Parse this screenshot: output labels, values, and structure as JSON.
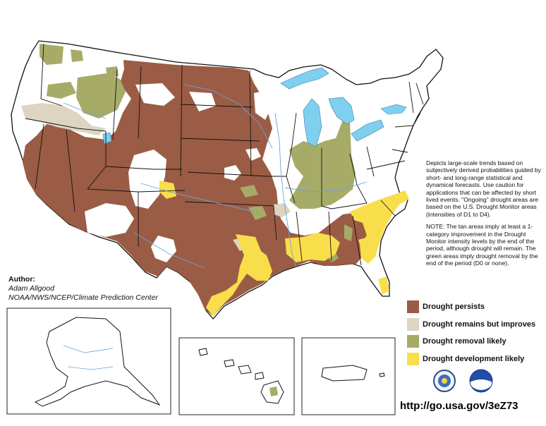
{
  "description_text": {
    "paragraph1": "Depicts large-scale trends based on subjectively derived probabilities guided by short- and long-range statistical and dynamical forecasts. Use caution for applications that can be affected by short lived events. \"Ongoing\" drought areas are based on the U.S. Drought Monitor areas (intensities of D1 to D4).",
    "paragraph2": "NOTE: The tan areas imply at least a 1-category improvement in the Drought Monitor intensity levels by the end of the period, although drought will remain. The green areas imply drought removal by the end of the period (D0 or none)."
  },
  "author": {
    "heading": "Author:",
    "name": "Adam Allgood",
    "organization": "NOAA/NWS/NCEP/Climate Prediction Center"
  },
  "legend": [
    {
      "label": "Drought persists",
      "color": "#9b5c45"
    },
    {
      "label": "Drought remains but improves",
      "color": "#ddd5c2"
    },
    {
      "label": "Drought removal likely",
      "color": "#a7ab68"
    },
    {
      "label": "Drought development likely",
      "color": "#f9de4b"
    }
  ],
  "url": "http://go.usa.gov/3eZ73",
  "colors": {
    "persists": "#9b5c45",
    "improves": "#ddd5c2",
    "removal": "#a7ab68",
    "development": "#f9de4b",
    "water": "#7fd0ee",
    "land": "#ffffff",
    "border": "#111111",
    "river": "#6aa2d8"
  },
  "logos": [
    "department-of-commerce-seal",
    "noaa-logo"
  ]
}
